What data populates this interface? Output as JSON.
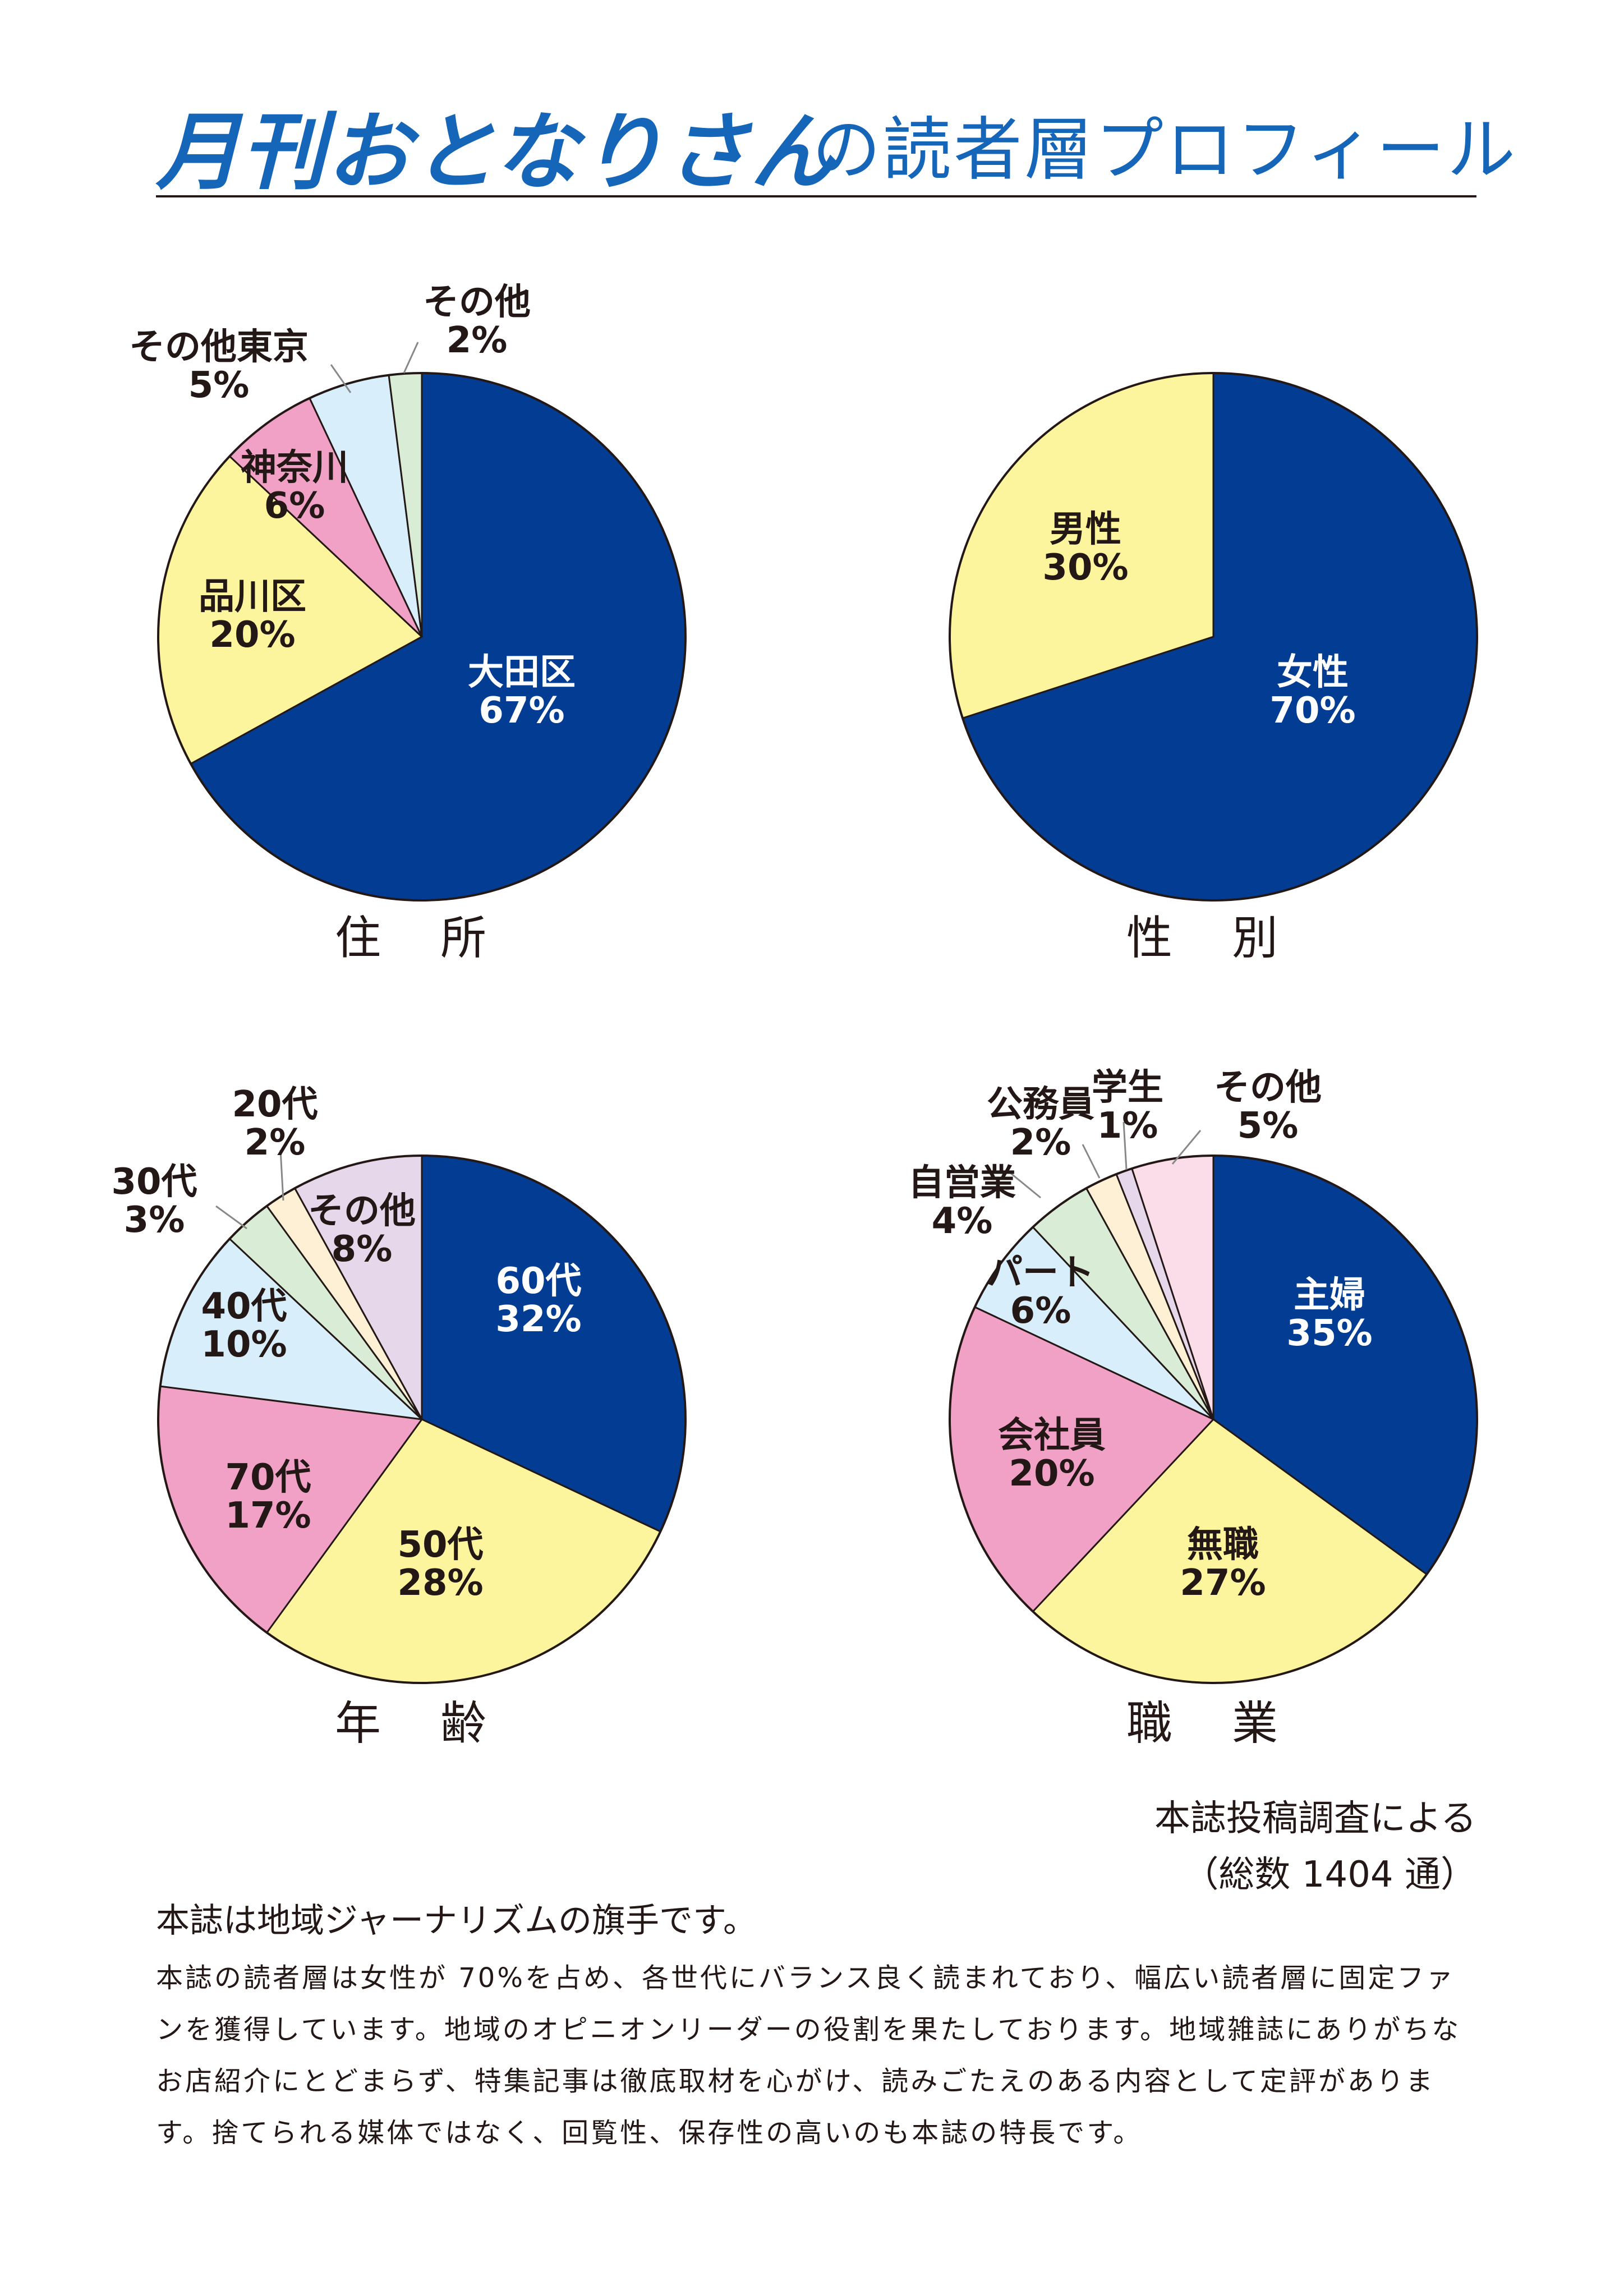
{
  "header": {
    "brand": "月刊おとなりさん",
    "subtitle": "の読者層プロフィール"
  },
  "chart_data": [
    {
      "type": "pie",
      "title": "住 所",
      "slices": [
        {
          "label": "大田区",
          "value": 67,
          "pct": "67%",
          "color": "#033d93"
        },
        {
          "label": "品川区",
          "value": 20,
          "pct": "20%",
          "color": "#fdf59d"
        },
        {
          "label": "神奈川",
          "value": 6,
          "pct": "6%",
          "color": "#f1a1c5"
        },
        {
          "label": "その他東京",
          "value": 5,
          "pct": "5%",
          "color": "#d8eefa"
        },
        {
          "label": "その他",
          "value": 2,
          "pct": "2%",
          "color": "#d9ecd6"
        }
      ]
    },
    {
      "type": "pie",
      "title": "性 別",
      "slices": [
        {
          "label": "女性",
          "value": 70,
          "pct": "70%",
          "color": "#033d93"
        },
        {
          "label": "男性",
          "value": 30,
          "pct": "30%",
          "color": "#fdf59d"
        }
      ]
    },
    {
      "type": "pie",
      "title": "年 齢",
      "slices": [
        {
          "label": "60代",
          "value": 32,
          "pct": "32%",
          "color": "#033d93"
        },
        {
          "label": "50代",
          "value": 28,
          "pct": "28%",
          "color": "#fdf59d"
        },
        {
          "label": "70代",
          "value": 17,
          "pct": "17%",
          "color": "#f1a1c5"
        },
        {
          "label": "40代",
          "value": 10,
          "pct": "10%",
          "color": "#d8eefa"
        },
        {
          "label": "30代",
          "value": 3,
          "pct": "3%",
          "color": "#d9ecd6"
        },
        {
          "label": "20代",
          "value": 2,
          "pct": "2%",
          "color": "#fdf0d4"
        },
        {
          "label": "その他",
          "value": 8,
          "pct": "8%",
          "color": "#e6d7ea"
        }
      ]
    },
    {
      "type": "pie",
      "title": "職 業",
      "slices": [
        {
          "label": "主婦",
          "value": 35,
          "pct": "35%",
          "color": "#033d93"
        },
        {
          "label": "無職",
          "value": 27,
          "pct": "27%",
          "color": "#fdf59d"
        },
        {
          "label": "会社員",
          "value": 20,
          "pct": "20%",
          "color": "#f1a1c5"
        },
        {
          "label": "パート",
          "value": 6,
          "pct": "6%",
          "color": "#d8eefa"
        },
        {
          "label": "自営業",
          "value": 4,
          "pct": "4%",
          "color": "#d9ecd6"
        },
        {
          "label": "公務員",
          "value": 2,
          "pct": "2%",
          "color": "#fdf0d4"
        },
        {
          "label": "学生",
          "value": 1,
          "pct": "1%",
          "color": "#e6d7ea"
        },
        {
          "label": "その他",
          "value": 5,
          "pct": "5%",
          "color": "#fadde8"
        }
      ]
    }
  ],
  "source_note": {
    "line1": "本誌投稿調査による",
    "line2": "（総数 1404 通）"
  },
  "body": {
    "heading": "本誌は地域ジャーナリズムの旗手です。",
    "text": "本誌の読者層は女性が 70%を占め、各世代にバランス良く読まれており、幅広い読者層に固定ファンを獲得しています。地域のオピニオンリーダーの役割を果たしております。地域雑誌にありがちなお店紹介にとどまらず、特集記事は徹底取材を心がけ、読みごたえのある内容として定評があります。捨てられる媒体ではなく、回覧性、保存性の高いのも本誌の特長です。"
  }
}
